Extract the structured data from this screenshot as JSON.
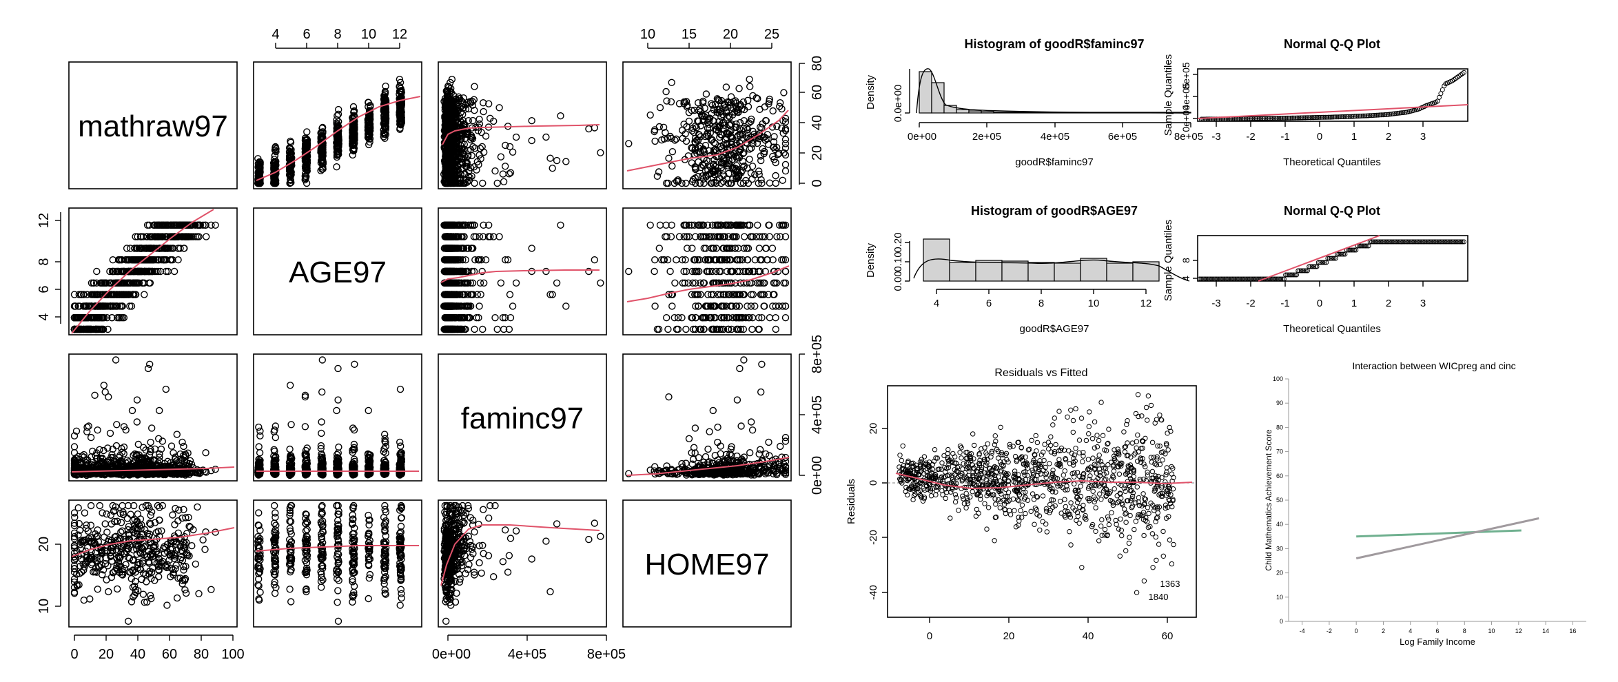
{
  "pairs": {
    "variables": [
      "mathraw97",
      "AGE97",
      "faminc97",
      "HOME97"
    ],
    "top_ticks": {
      "AGE97": [
        "4",
        "6",
        "8",
        "10",
        "12"
      ],
      "HOME97": [
        "10",
        "15",
        "20",
        "25"
      ]
    },
    "bottom_ticks": {
      "mathraw97": [
        "0",
        "20",
        "40",
        "60",
        "80",
        "100"
      ],
      "faminc97": [
        "0e+00",
        "4e+05",
        "8e+05"
      ]
    },
    "left_ticks": {
      "AGE97": [
        "4",
        "6",
        "8",
        "12"
      ],
      "HOME97": [
        "10",
        "20"
      ]
    },
    "right_ticks": {
      "mathraw97": [
        "0",
        "20",
        "40",
        "60",
        "80"
      ],
      "faminc97": [
        "0e+00",
        "4e+05",
        "8e+05"
      ]
    }
  },
  "hist1": {
    "title": "Histogram of goodR$faminc97",
    "xlabel": "goodR$faminc97",
    "ylabel": "Density",
    "xticks": [
      "0e+00",
      "2e+05",
      "4e+05",
      "6e+05",
      "8e+05"
    ],
    "yticks": [
      "0.0e+00"
    ]
  },
  "qq1": {
    "title": "Normal Q-Q Plot",
    "xlabel": "Theoretical Quantiles",
    "ylabel": "Sample Quantiles",
    "xticks": [
      "-3",
      "-2",
      "-1",
      "0",
      "1",
      "2",
      "3"
    ],
    "yticks": [
      "0e+00",
      "4e+05",
      "8e+05"
    ]
  },
  "hist2": {
    "title": "Histogram of goodR$AGE97",
    "xlabel": "goodR$AGE97",
    "ylabel": "Density",
    "xticks": [
      "4",
      "6",
      "8",
      "10",
      "12"
    ],
    "yticks": [
      "0.00",
      "0.10",
      "0.20"
    ]
  },
  "qq2": {
    "title": "Normal Q-Q Plot",
    "xlabel": "Theoretical Quantiles",
    "ylabel": "Sample Quantiles",
    "xticks": [
      "-3",
      "-2",
      "-1",
      "0",
      "1",
      "2",
      "3"
    ],
    "yticks": [
      "4",
      "8"
    ]
  },
  "resid": {
    "title": "Residuals vs Fitted",
    "ylabel": "Residuals",
    "xticks": [
      "0",
      "20",
      "40",
      "60"
    ],
    "yticks": [
      "20",
      "0",
      "-20",
      "-40"
    ],
    "labels": [
      "1363",
      "1840"
    ]
  },
  "interact": {
    "title": "Interaction between WICpreg and cinc",
    "xlabel": "Log Family Income",
    "ylabel": "Child Mathematics Achievement Score",
    "xticks": [
      "-4",
      "-2",
      "0",
      "2",
      "4",
      "6",
      "8",
      "10",
      "12",
      "14",
      "16"
    ],
    "yticks": [
      "0",
      "10",
      "20",
      "30",
      "40",
      "50",
      "60",
      "70",
      "80",
      "90",
      "100"
    ]
  },
  "chart_data": [
    {
      "type": "scatter",
      "title": "",
      "variables": [
        "mathraw97",
        "AGE97",
        "faminc97",
        "HOME97"
      ],
      "ranges": {
        "mathraw97": [
          0,
          100
        ],
        "AGE97": [
          3,
          13
        ],
        "faminc97": [
          0,
          800000
        ],
        "HOME97": [
          8,
          27
        ]
      },
      "smoother_color": "#e0536a",
      "smoother": {
        "AGE97_vs_mathraw97": [
          [
            3,
            5
          ],
          [
            6,
            25
          ],
          [
            8,
            45
          ],
          [
            10,
            60
          ],
          [
            12,
            72
          ],
          [
            13,
            75
          ]
        ],
        "mathraw97_vs_AGE97": [
          [
            0,
            3
          ],
          [
            20,
            5
          ],
          [
            40,
            7.5
          ],
          [
            60,
            9.8
          ],
          [
            80,
            12
          ],
          [
            95,
            13
          ]
        ],
        "faminc97_vs_mathraw97": [
          [
            0,
            32
          ],
          [
            50000,
            42
          ],
          [
            150000,
            48
          ],
          [
            300000,
            50
          ],
          [
            500000,
            49
          ],
          [
            800000,
            50
          ]
        ],
        "HOME97_vs_mathraw97": [
          [
            8,
            12
          ],
          [
            12,
            18
          ],
          [
            16,
            22
          ],
          [
            20,
            28
          ],
          [
            24,
            42
          ],
          [
            27,
            55
          ]
        ]
      }
    },
    {
      "type": "bar",
      "title": "Histogram of goodR$faminc97",
      "xlabel": "goodR$faminc97",
      "ylabel": "Density",
      "bin_edges": [
        0,
        50000,
        100000,
        150000,
        200000,
        250000,
        300000,
        800000
      ],
      "values": [
        1.0,
        0.75,
        0.18,
        0.07,
        0.03,
        0.02,
        0.005
      ]
    },
    {
      "type": "scatter",
      "title": "Normal Q-Q Plot",
      "xlabel": "Theoretical Quantiles",
      "ylabel": "Sample Quantiles",
      "xlim": [
        -3.5,
        3.6
      ],
      "ylim": [
        0,
        850000
      ],
      "x": [
        -3.4,
        -3,
        -2.5,
        -2,
        -1.5,
        -1,
        -0.5,
        0,
        0.5,
        1,
        1.5,
        2,
        2.3,
        2.5,
        2.8,
        3,
        3.1,
        3.2,
        3.5
      ],
      "y": [
        0,
        2000,
        5000,
        10000,
        15000,
        20000,
        28000,
        35000,
        45000,
        60000,
        80000,
        120000,
        170000,
        230000,
        300000,
        600000,
        630000,
        660000,
        800000
      ]
    },
    {
      "type": "bar",
      "title": "Histogram of goodR$AGE97",
      "xlabel": "goodR$AGE97",
      "ylabel": "Density",
      "bin_edges": [
        3,
        4,
        5,
        6,
        7,
        8,
        9,
        10,
        11,
        12
      ],
      "values": [
        0.23,
        0.1,
        0.11,
        0.105,
        0.1,
        0.095,
        0.125,
        0.095,
        0.1
      ],
      "ylim": [
        0,
        0.25
      ]
    },
    {
      "type": "scatter",
      "title": "Normal Q-Q Plot",
      "xlabel": "Theoretical Quantiles",
      "ylabel": "Sample Quantiles",
      "xlim": [
        -3.5,
        3.6
      ],
      "ylim": [
        2.5,
        13.5
      ],
      "steps": [
        [
          -3.5,
          3
        ],
        [
          -1.5,
          3
        ],
        [
          -1.2,
          4
        ],
        [
          -0.9,
          5
        ],
        [
          -0.6,
          6
        ],
        [
          -0.35,
          7
        ],
        [
          -0.1,
          8
        ],
        [
          0.15,
          9
        ],
        [
          0.4,
          10
        ],
        [
          0.7,
          11
        ],
        [
          1.0,
          12
        ],
        [
          3.5,
          12
        ]
      ]
    },
    {
      "type": "scatter",
      "title": "Residuals vs Fitted",
      "ylabel": "Residuals",
      "xlim": [
        -5,
        78
      ],
      "ylim": [
        -47,
        32
      ],
      "smoother": [
        [
          -2,
          4
        ],
        [
          5,
          2
        ],
        [
          15,
          -1
        ],
        [
          25,
          -2
        ],
        [
          35,
          -1.5
        ],
        [
          45,
          0
        ],
        [
          55,
          1
        ],
        [
          65,
          0.5
        ],
        [
          72,
          1
        ]
      ],
      "annotations": [
        {
          "label": "1363",
          "x": 64,
          "y": -36
        },
        {
          "label": "1840",
          "x": 62,
          "y": -40
        }
      ]
    },
    {
      "type": "line",
      "title": "Interaction between WICpreg and cinc",
      "xlabel": "Log Family Income",
      "ylabel": "Child Mathematics Achievement Score",
      "xlim": [
        -5,
        17
      ],
      "ylim": [
        0,
        100
      ],
      "series": [
        {
          "color": "#6fb08f",
          "x": [
            0,
            12.2
          ],
          "y": [
            35,
            37.5
          ]
        },
        {
          "color": "#a09a9e",
          "x": [
            0,
            13.5
          ],
          "y": [
            26,
            42.5
          ]
        }
      ]
    }
  ]
}
